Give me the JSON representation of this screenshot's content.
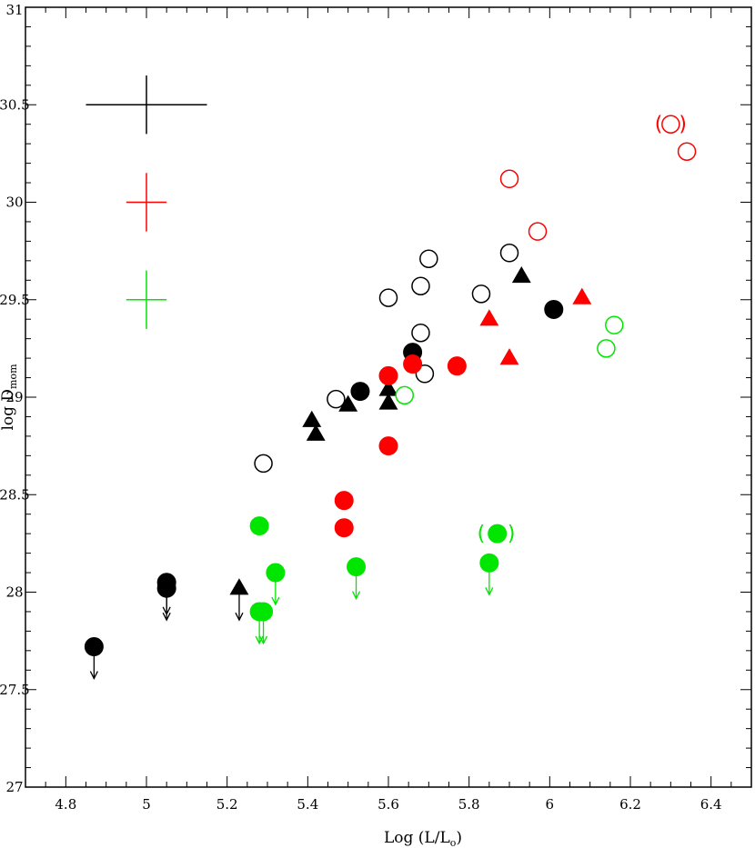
{
  "chart_data": {
    "type": "scatter",
    "title": "",
    "xlabel": "Log (L/L",
    "xlabel_sub": "o",
    "xlabel_close": ")",
    "ylabel": "log D",
    "ylabel_sub": "mom",
    "xlim": [
      4.7,
      6.5
    ],
    "ylim": [
      27,
      31
    ],
    "x_ticks": [
      4.8,
      5,
      5.2,
      5.4,
      5.6,
      5.8,
      6,
      6.2,
      6.4
    ],
    "x_tick_labels": [
      "4.8",
      "5",
      "5.2",
      "5.4",
      "5.6",
      "5.8",
      "6",
      "6.2",
      "6.4"
    ],
    "y_ticks": [
      27,
      27.5,
      28,
      28.5,
      29,
      29.5,
      30,
      30.5,
      31
    ],
    "y_tick_labels": [
      "27",
      "27.5",
      "28",
      "28.5",
      "29",
      "29.5",
      "30",
      "30.5",
      "31"
    ],
    "grid": false,
    "colors": {
      "black": "#000000",
      "red": "#ff0000",
      "green": "#00e600"
    },
    "error_bars": [
      {
        "color": "black",
        "x": 5.0,
        "y": 30.5,
        "dx": 0.15,
        "dy": 0.15
      },
      {
        "color": "red",
        "x": 5.0,
        "y": 30.0,
        "dx": 0.05,
        "dy": 0.15
      },
      {
        "color": "green",
        "x": 5.0,
        "y": 29.5,
        "dx": 0.05,
        "dy": 0.15
      }
    ],
    "series": [
      {
        "color": "black",
        "marker": "open-circle",
        "points": [
          [
            5.29,
            28.66
          ],
          [
            5.47,
            28.99
          ],
          [
            5.6,
            29.51
          ],
          [
            5.68,
            29.57
          ],
          [
            5.68,
            29.33
          ],
          [
            5.69,
            29.12
          ],
          [
            5.7,
            29.71
          ],
          [
            5.83,
            29.53
          ],
          [
            5.9,
            29.74
          ]
        ]
      },
      {
        "color": "black",
        "marker": "filled-circle",
        "points": [
          [
            5.53,
            29.03
          ],
          [
            5.66,
            29.23
          ],
          [
            6.01,
            29.45
          ]
        ]
      },
      {
        "color": "black",
        "marker": "filled-triangle",
        "points": [
          [
            5.41,
            28.88
          ],
          [
            5.42,
            28.81
          ],
          [
            5.5,
            28.96
          ],
          [
            5.6,
            29.04
          ],
          [
            5.6,
            28.97
          ],
          [
            5.93,
            29.62
          ]
        ]
      },
      {
        "color": "black",
        "marker": "filled-circle",
        "upper_limit": true,
        "points": [
          [
            4.87,
            27.72
          ],
          [
            5.05,
            28.05
          ],
          [
            5.05,
            28.02
          ]
        ]
      },
      {
        "color": "black",
        "marker": "filled-triangle",
        "upper_limit": true,
        "points": [
          [
            5.23,
            28.02
          ]
        ]
      },
      {
        "color": "red",
        "marker": "open-circle",
        "points": [
          [
            5.9,
            30.12
          ],
          [
            5.97,
            29.85
          ],
          [
            6.3,
            30.4
          ],
          [
            6.34,
            30.26
          ]
        ]
      },
      {
        "color": "red",
        "marker": "filled-circle",
        "points": [
          [
            5.49,
            28.47
          ],
          [
            5.49,
            28.33
          ],
          [
            5.6,
            29.11
          ],
          [
            5.6,
            28.75
          ],
          [
            5.66,
            29.17
          ],
          [
            5.77,
            29.16
          ]
        ]
      },
      {
        "color": "red",
        "marker": "filled-triangle",
        "points": [
          [
            5.85,
            29.4
          ],
          [
            5.9,
            29.2
          ],
          [
            6.08,
            29.51
          ]
        ]
      },
      {
        "color": "green",
        "marker": "open-circle",
        "points": [
          [
            5.64,
            29.01
          ],
          [
            6.14,
            29.25
          ],
          [
            6.16,
            29.37
          ]
        ]
      },
      {
        "color": "green",
        "marker": "filled-circle",
        "points": [
          [
            5.28,
            28.34
          ],
          [
            5.87,
            28.3
          ]
        ]
      },
      {
        "color": "green",
        "marker": "filled-circle",
        "upper_limit": true,
        "points": [
          [
            5.28,
            27.9
          ],
          [
            5.29,
            27.9
          ],
          [
            5.32,
            28.1
          ],
          [
            5.52,
            28.13
          ],
          [
            5.85,
            28.15
          ]
        ]
      }
    ],
    "annotations": [
      {
        "text": "(",
        "color": "red",
        "x": 6.27,
        "y": 30.4
      },
      {
        "text": ")",
        "color": "red",
        "x": 6.33,
        "y": 30.4
      },
      {
        "text": "(",
        "color": "green",
        "x": 5.83,
        "y": 28.3
      },
      {
        "text": ")",
        "color": "green",
        "x": 5.905,
        "y": 28.3
      }
    ]
  }
}
